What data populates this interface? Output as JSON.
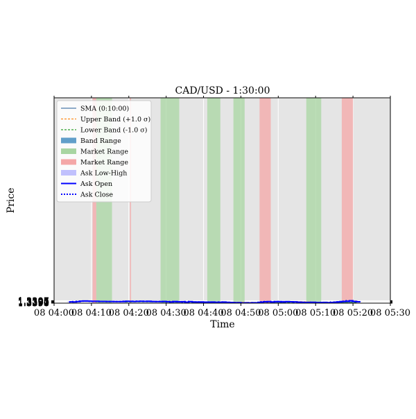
{
  "chart_data": {
    "type": "line",
    "title": "CAD/USD - 1:30:00",
    "xlabel": "Time",
    "ylabel": "Price",
    "xlim": [
      "04:00",
      "05:30"
    ],
    "ylim": [
      1.339,
      1.39755
    ],
    "y_ticks": [
      "1.3390",
      "1.3391",
      "1.3392",
      "1.3393",
      "1.3394",
      "1.3395",
      "1.3396",
      "1.3397"
    ],
    "x_ticks": [
      "08 04:00",
      "08 04:10",
      "08 04:20",
      "08 04:30",
      "08 04:40",
      "08 04:50",
      "08 05:00",
      "08 05:10",
      "08 05:20",
      "08 05:30"
    ],
    "grid": true,
    "legend_position": "top-left",
    "colors": {
      "sma": "#4a7aa8",
      "upper": "#ff8c1a",
      "lower": "#2ca02c",
      "band": "#1f77b4",
      "market_green": "#a8d5a2",
      "market_red": "#f4a7a7",
      "ask": "#0000ff",
      "ask_range": "#9999ff"
    },
    "legend": [
      {
        "key": "sma",
        "label": "SMA (0:10:00)"
      },
      {
        "key": "upper",
        "label": "Upper Band (+1.0 σ)"
      },
      {
        "key": "lower",
        "label": "Lower Band (-1.0 σ)"
      },
      {
        "key": "band",
        "label": "Band Range"
      },
      {
        "key": "mgreen",
        "label": "Market Range"
      },
      {
        "key": "mred",
        "label": "Market Range"
      },
      {
        "key": "askrange",
        "label": "Ask Low-High"
      },
      {
        "key": "askopen",
        "label": "Ask Open"
      },
      {
        "key": "askclose",
        "label": "Ask Close"
      }
    ],
    "market_ranges": [
      {
        "start": "04:10.3",
        "end": "04:11.3",
        "kind": "red"
      },
      {
        "start": "04:11.3",
        "end": "04:15.5",
        "kind": "green"
      },
      {
        "start": "04:20.3",
        "end": "04:20.6",
        "kind": "red"
      },
      {
        "start": "04:28.5",
        "end": "04:33.5",
        "kind": "green"
      },
      {
        "start": "04:41",
        "end": "04:44.5",
        "kind": "green"
      },
      {
        "start": "04:48",
        "end": "04:51",
        "kind": "green"
      },
      {
        "start": "04:55",
        "end": "04:58",
        "kind": "red"
      },
      {
        "start": "05:07.5",
        "end": "05:11.5",
        "kind": "green"
      },
      {
        "start": "05:17",
        "end": "05:20",
        "kind": "red"
      }
    ],
    "band": {
      "t": [
        "04:19",
        "04:22",
        "04:26",
        "04:30",
        "04:34",
        "04:38",
        "04:42",
        "04:46",
        "04:50",
        "04:54",
        "04:57",
        "05:00",
        "05:03",
        "05:06",
        "05:09",
        "05:12",
        "05:15",
        "05:18",
        "05:21"
      ],
      "upper": [
        1.33954,
        1.33955,
        1.33954,
        1.33951,
        1.33946,
        1.3394,
        1.33933,
        1.33927,
        1.33925,
        1.3392,
        1.33915,
        1.33943,
        1.33947,
        1.33945,
        1.33935,
        1.3392,
        1.33925,
        1.33955,
        1.33964
      ],
      "lower": [
        1.33929,
        1.33935,
        1.33935,
        1.3393,
        1.33927,
        1.3392,
        1.33915,
        1.33905,
        1.33896,
        1.3388,
        1.3388,
        1.33905,
        1.3392,
        1.33928,
        1.33915,
        1.33905,
        1.33903,
        1.3391,
        1.3392
      ],
      "sma": [
        1.33942,
        1.33945,
        1.33944,
        1.3394,
        1.33936,
        1.3393,
        1.33924,
        1.33916,
        1.3391,
        1.339,
        1.33897,
        1.33924,
        1.33933,
        1.33936,
        1.33925,
        1.33913,
        1.33914,
        1.33932,
        1.33942
      ]
    },
    "ask_open": {
      "t": [
        "04:04",
        "04:05",
        "04:06",
        "04:07",
        "04:08",
        "04:09",
        "04:10",
        "04:12",
        "04:14",
        "04:16",
        "04:18",
        "04:19",
        "04:20",
        "04:21",
        "04:22",
        "04:23",
        "04:24",
        "04:25",
        "04:26",
        "04:27",
        "04:28",
        "04:29",
        "04:30",
        "04:31",
        "04:32",
        "04:33",
        "04:34",
        "04:35",
        "04:36",
        "04:37",
        "04:38",
        "04:39",
        "04:40",
        "04:41",
        "04:42",
        "04:43",
        "04:44",
        "04:45",
        "04:46",
        "04:47",
        "04:48",
        "04:49",
        "04:50",
        "04:51",
        "04:52",
        "04:53",
        "04:54",
        "04:55",
        "04:56",
        "04:57",
        "04:58",
        "04:59",
        "05:00",
        "05:01",
        "05:02",
        "05:03",
        "05:04",
        "05:05",
        "05:06",
        "05:07",
        "05:08",
        "05:09",
        "05:10",
        "05:11",
        "05:12",
        "05:13",
        "05:14",
        "05:15",
        "05:16",
        "05:17",
        "05:18",
        "05:19",
        "05:20",
        "05:21",
        "05:22"
      ],
      "values": [
        1.33938,
        1.33933,
        1.33945,
        1.33958,
        1.33962,
        1.33958,
        1.33955,
        1.3395,
        1.33948,
        1.33946,
        1.33944,
        1.33956,
        1.33951,
        1.33948,
        1.33952,
        1.33955,
        1.3395,
        1.33955,
        1.33947,
        1.33943,
        1.33945,
        1.3395,
        1.33942,
        1.33935,
        1.33947,
        1.33938,
        1.33942,
        1.3393,
        1.33943,
        1.33935,
        1.33931,
        1.33935,
        1.33929,
        1.3393,
        1.33931,
        1.33925,
        1.33928,
        1.33931,
        1.33925,
        1.3392,
        1.33912,
        1.33915,
        1.33905,
        1.3391,
        1.33908,
        1.33912,
        1.3391,
        1.33925,
        1.3394,
        1.33944,
        1.33936,
        1.33943,
        1.33945,
        1.33935,
        1.33943,
        1.3394,
        1.33937,
        1.3393,
        1.33925,
        1.3392,
        1.33922,
        1.33925,
        1.33918,
        1.33917,
        1.33922,
        1.33915,
        1.3392,
        1.3393,
        1.33937,
        1.33947,
        1.33955,
        1.3397,
        1.3395,
        1.3394,
        1.3394
      ]
    },
    "ask_close": {
      "t": [
        "04:04",
        "04:05",
        "04:06",
        "04:07",
        "04:08",
        "04:09",
        "04:10",
        "04:12",
        "04:14",
        "04:16",
        "04:18",
        "04:19",
        "04:20",
        "04:21",
        "04:22",
        "04:23",
        "04:24",
        "04:25",
        "04:26",
        "04:27",
        "04:28",
        "04:29",
        "04:30",
        "04:31",
        "04:32",
        "04:33",
        "04:34",
        "04:35",
        "04:36",
        "04:37",
        "04:38",
        "04:39",
        "04:40",
        "04:41",
        "04:42",
        "04:43",
        "04:44",
        "04:45",
        "04:46",
        "04:47",
        "04:48",
        "04:49",
        "04:50",
        "04:51",
        "04:52",
        "04:53",
        "04:54",
        "04:55",
        "04:56",
        "04:57",
        "04:58",
        "04:59",
        "05:00",
        "05:01",
        "05:02",
        "05:03",
        "05:04",
        "05:05",
        "05:06",
        "05:07",
        "05:08",
        "05:09",
        "05:10",
        "05:11",
        "05:12",
        "05:13",
        "05:14",
        "05:15",
        "05:16",
        "05:17",
        "05:18",
        "05:19",
        "05:20",
        "05:21",
        "05:22"
      ],
      "values": [
        1.33933,
        1.33945,
        1.33958,
        1.33962,
        1.33958,
        1.33955,
        1.3395,
        1.33948,
        1.33946,
        1.33944,
        1.33956,
        1.33951,
        1.33948,
        1.33952,
        1.33955,
        1.3395,
        1.33955,
        1.33947,
        1.33943,
        1.33945,
        1.3395,
        1.33942,
        1.33935,
        1.33947,
        1.33938,
        1.33942,
        1.3393,
        1.33943,
        1.33935,
        1.33931,
        1.33935,
        1.33929,
        1.3393,
        1.33931,
        1.33925,
        1.33928,
        1.33931,
        1.33925,
        1.3392,
        1.33912,
        1.33915,
        1.33905,
        1.3391,
        1.33908,
        1.33912,
        1.3391,
        1.33925,
        1.3394,
        1.33944,
        1.33936,
        1.33943,
        1.33945,
        1.33935,
        1.33943,
        1.3394,
        1.33937,
        1.3393,
        1.33925,
        1.3392,
        1.33922,
        1.33925,
        1.33918,
        1.33917,
        1.33922,
        1.33915,
        1.3392,
        1.3393,
        1.33937,
        1.33947,
        1.33955,
        1.3397,
        1.3395,
        1.3394,
        1.3394,
        1.3394
      ]
    },
    "ask_range": {
      "t": [
        "04:04",
        "04:06",
        "04:08",
        "04:10",
        "04:13",
        "04:16",
        "04:19",
        "04:21",
        "04:23",
        "04:25",
        "04:27",
        "04:29",
        "04:31",
        "04:33",
        "04:35",
        "04:37",
        "04:39",
        "04:41",
        "04:43",
        "04:45",
        "04:47",
        "04:49",
        "04:51",
        "04:53",
        "04:55",
        "04:57",
        "04:59",
        "05:01",
        "05:03",
        "05:05",
        "05:07",
        "05:09",
        "05:11",
        "05:13",
        "05:15",
        "05:17",
        "05:19",
        "05:21"
      ],
      "low": [
        1.33932,
        1.3394,
        1.3395,
        1.33945,
        1.33943,
        1.33941,
        1.33945,
        1.33942,
        1.33945,
        1.3394,
        1.33936,
        1.33935,
        1.3393,
        1.3393,
        1.33925,
        1.33925,
        1.33924,
        1.33922,
        1.3392,
        1.33918,
        1.3391,
        1.33903,
        1.33903,
        1.33903,
        1.33905,
        1.3392,
        1.3393,
        1.33928,
        1.3393,
        1.33922,
        1.33915,
        1.33915,
        1.33912,
        1.33912,
        1.33918,
        1.3393,
        1.33935,
        1.33935
      ],
      "high": [
        1.33948,
        1.3396,
        1.33965,
        1.33962,
        1.33958,
        1.33955,
        1.3396,
        1.33958,
        1.3396,
        1.33958,
        1.33952,
        1.33955,
        1.3395,
        1.3395,
        1.33948,
        1.33945,
        1.3394,
        1.33938,
        1.33935,
        1.33935,
        1.33928,
        1.33922,
        1.33918,
        1.33918,
        1.3393,
        1.33962,
        1.3395,
        1.3395,
        1.33948,
        1.33942,
        1.33932,
        1.3393,
        1.33928,
        1.3393,
        1.33945,
        1.33958,
        1.33972,
        1.3396
      ]
    }
  }
}
